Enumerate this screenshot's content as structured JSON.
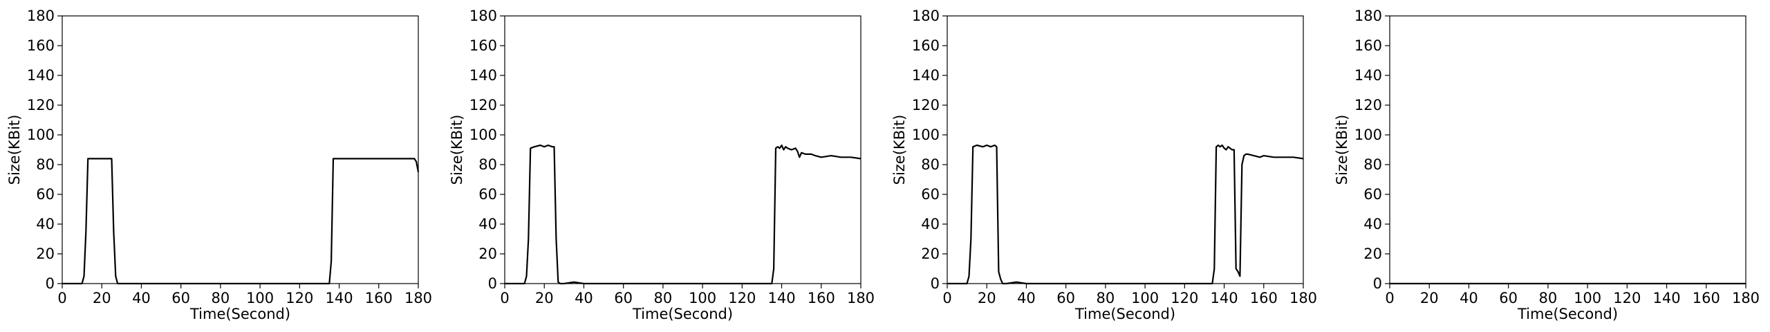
{
  "chart_data": [
    {
      "type": "line",
      "xlabel": "Time(Second)",
      "ylabel": "Size(KBit)",
      "xlim": [
        0,
        180
      ],
      "ylim": [
        0,
        180
      ],
      "xticks": [
        0,
        20,
        40,
        60,
        80,
        100,
        120,
        140,
        160,
        180
      ],
      "yticks": [
        0,
        20,
        40,
        60,
        80,
        100,
        120,
        140,
        160,
        180
      ],
      "grid": false,
      "series": [
        {
          "color": "#000000",
          "x": [
            0,
            10,
            11,
            12,
            13,
            15,
            20,
            25,
            26,
            27,
            28,
            30,
            60,
            100,
            135,
            136,
            137,
            140,
            150,
            160,
            170,
            178,
            179,
            180
          ],
          "y": [
            0,
            0,
            5,
            35,
            84,
            84,
            84,
            84,
            35,
            5,
            0,
            0,
            0,
            0,
            0,
            15,
            84,
            84,
            84,
            84,
            84,
            84,
            82,
            75
          ]
        }
      ]
    },
    {
      "type": "line",
      "xlabel": "Time(Second)",
      "ylabel": "Size(KBit)",
      "xlim": [
        0,
        180
      ],
      "ylim": [
        0,
        180
      ],
      "xticks": [
        0,
        20,
        40,
        60,
        80,
        100,
        120,
        140,
        160,
        180
      ],
      "yticks": [
        0,
        20,
        40,
        60,
        80,
        100,
        120,
        140,
        160,
        180
      ],
      "grid": false,
      "series": [
        {
          "color": "#000000",
          "x": [
            0,
            10,
            11,
            12,
            13,
            15,
            18,
            20,
            22,
            24,
            25,
            26,
            27,
            28,
            30,
            35,
            40,
            60,
            100,
            135,
            136,
            137,
            138,
            139,
            140,
            141,
            142,
            143,
            145,
            147,
            148,
            149,
            150,
            152,
            155,
            157,
            160,
            165,
            170,
            175,
            180
          ],
          "y": [
            0,
            0,
            5,
            30,
            91,
            92,
            93,
            92,
            93,
            92,
            92,
            30,
            1,
            0,
            0,
            1,
            0,
            0,
            0,
            0,
            10,
            91,
            92,
            91,
            93,
            90,
            92,
            91,
            90,
            91,
            89,
            85,
            88,
            87,
            87,
            86,
            85,
            86,
            85,
            85,
            84
          ]
        }
      ]
    },
    {
      "type": "line",
      "xlabel": "Time(Second)",
      "ylabel": "Size(KBit)",
      "xlim": [
        0,
        180
      ],
      "ylim": [
        0,
        180
      ],
      "xticks": [
        0,
        20,
        40,
        60,
        80,
        100,
        120,
        140,
        160,
        180
      ],
      "yticks": [
        0,
        20,
        40,
        60,
        80,
        100,
        120,
        140,
        160,
        180
      ],
      "grid": false,
      "series": [
        {
          "color": "#000000",
          "x": [
            0,
            10,
            11,
            12,
            13,
            15,
            18,
            20,
            22,
            24,
            25,
            26,
            27,
            28,
            30,
            35,
            40,
            60,
            100,
            134,
            135,
            136,
            137,
            138,
            139,
            140,
            141,
            142,
            144,
            145,
            146,
            147,
            148,
            149,
            150,
            151,
            152,
            155,
            158,
            160,
            165,
            170,
            175,
            180
          ],
          "y": [
            0,
            0,
            5,
            30,
            92,
            93,
            92,
            93,
            92,
            93,
            92,
            8,
            3,
            0,
            0,
            1,
            0,
            0,
            0,
            0,
            10,
            92,
            93,
            92,
            93,
            91,
            90,
            92,
            90,
            90,
            10,
            8,
            5,
            80,
            86,
            87,
            87,
            86,
            85,
            86,
            85,
            85,
            85,
            84
          ]
        }
      ]
    },
    {
      "type": "line",
      "xlabel": "Time(Second)",
      "ylabel": "Size(KBit)",
      "xlim": [
        0,
        180
      ],
      "ylim": [
        0,
        180
      ],
      "xticks": [
        0,
        20,
        40,
        60,
        80,
        100,
        120,
        140,
        160,
        180
      ],
      "yticks": [
        0,
        20,
        40,
        60,
        80,
        100,
        120,
        140,
        160,
        180
      ],
      "grid": false,
      "series": [
        {
          "color": "#000000",
          "x": [
            0,
            180
          ],
          "y": [
            0,
            0
          ]
        }
      ]
    }
  ]
}
